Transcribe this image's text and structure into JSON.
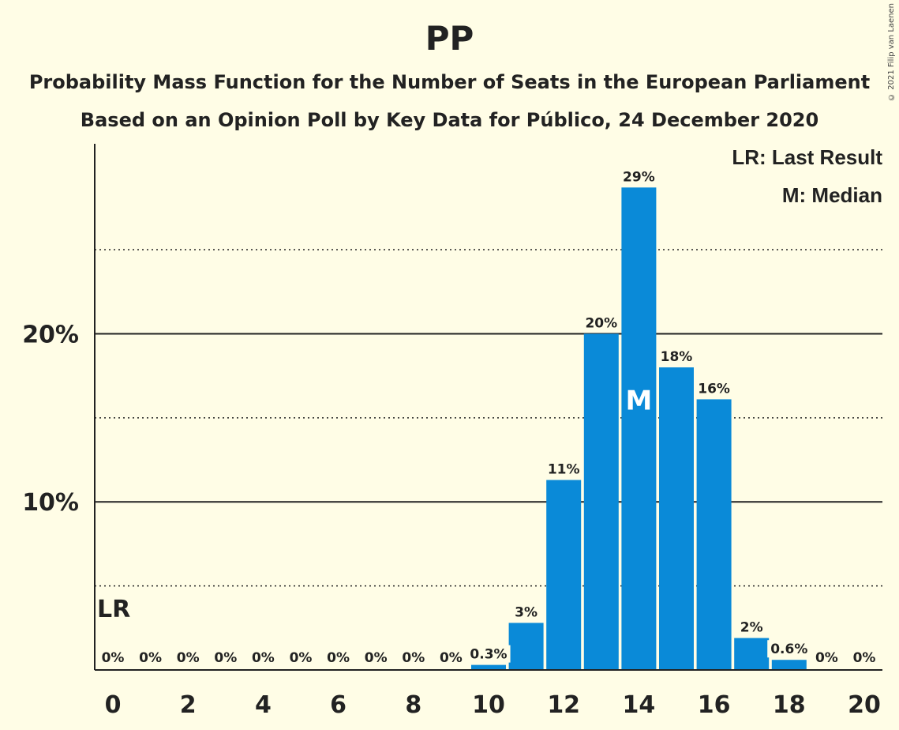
{
  "header": {
    "title": "PP",
    "subtitle1": "Probability Mass Function for the Number of Seats in the European Parliament",
    "subtitle2": "Based on an Opinion Poll by Key Data for Público, 24 December 2020",
    "copyright": "© 2021 Filip van Laenen"
  },
  "legend": {
    "lr": "LR: Last Result",
    "m": "M: Median"
  },
  "colors": {
    "bar": "#0a8ad8",
    "background": "#fffde6",
    "axis": "#222222"
  },
  "chart_data": {
    "type": "bar",
    "x": [
      0,
      1,
      2,
      3,
      4,
      5,
      6,
      7,
      8,
      9,
      10,
      11,
      12,
      13,
      14,
      15,
      16,
      17,
      18,
      19,
      20
    ],
    "values": [
      0,
      0,
      0,
      0,
      0,
      0,
      0,
      0,
      0,
      0,
      0.3,
      2.8,
      11.3,
      20.0,
      28.7,
      18.0,
      16.1,
      1.9,
      0.6,
      0,
      0
    ],
    "data_labels": [
      "0%",
      "0%",
      "0%",
      "0%",
      "0%",
      "0%",
      "0%",
      "0%",
      "0%",
      "0%",
      "0.3%",
      "3%",
      "11%",
      "20%",
      "29%",
      "18%",
      "16%",
      "2%",
      "0.6%",
      "0%",
      "0%"
    ],
    "xticks": [
      0,
      2,
      4,
      6,
      8,
      10,
      12,
      14,
      16,
      18,
      20
    ],
    "xtick_labels": [
      "0",
      "2",
      "4",
      "6",
      "8",
      "10",
      "12",
      "14",
      "16",
      "18",
      "20"
    ],
    "yticks": [
      10,
      20
    ],
    "ytick_labels": [
      "10%",
      "20%"
    ],
    "minor_gridlines": [
      5,
      15,
      25
    ],
    "ylim": [
      0,
      31.3
    ],
    "last_result": 0,
    "last_result_label": "LR",
    "median": 14,
    "median_label": "M"
  }
}
